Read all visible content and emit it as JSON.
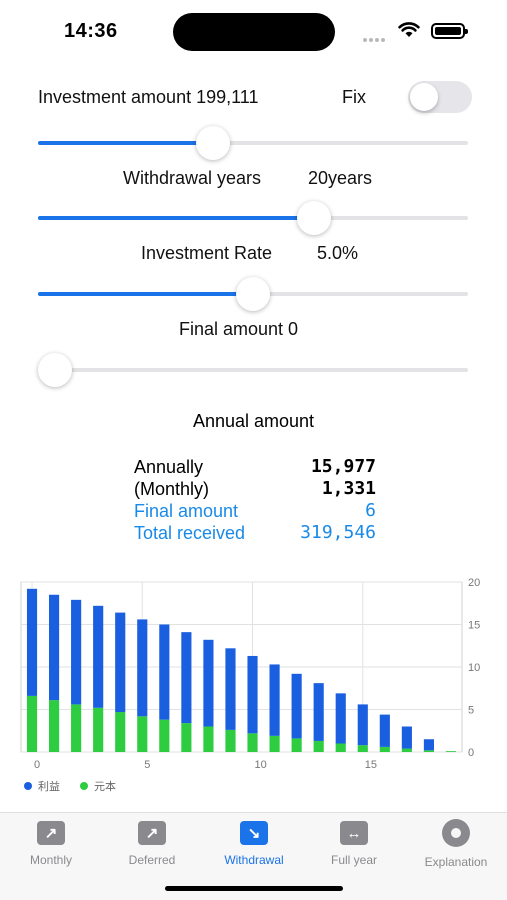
{
  "status_bar": {
    "time": "14:36"
  },
  "investment": {
    "label": "Investment amount 199,111",
    "fix_label": "Fix",
    "fix_on": false,
    "slider_fraction": 0.4
  },
  "withdrawal": {
    "label": "Withdrawal years",
    "value": "20years",
    "slider_fraction": 0.655
  },
  "rate": {
    "label": "Investment Rate",
    "value": "5.0%",
    "slider_fraction": 0.5
  },
  "final": {
    "label": "Final amount 0",
    "slider_fraction": 0.0
  },
  "annual": {
    "title": "Annual amount",
    "rows": [
      {
        "label": "Annually",
        "value": "15,977"
      },
      {
        "label": "(Monthly)",
        "value": "1,331"
      },
      {
        "label": "Final amount",
        "value": "6"
      },
      {
        "label": "Total received",
        "value": "319,546"
      }
    ]
  },
  "chart_data": {
    "type": "bar",
    "stacked": true,
    "x": [
      0,
      1,
      2,
      3,
      4,
      5,
      6,
      7,
      8,
      9,
      10,
      11,
      12,
      13,
      14,
      15,
      16,
      17,
      18,
      19
    ],
    "x_ticks": [
      "0",
      "5",
      "10",
      "15"
    ],
    "y_ticks": [
      "0",
      "5",
      "10",
      "15",
      "20"
    ],
    "ylim": [
      0,
      20
    ],
    "y_axis_side": "right",
    "grid": true,
    "legend_position": "bottom-left",
    "series": [
      {
        "name": "元本",
        "color": "#2ecc40",
        "values": [
          6.6,
          6.1,
          5.6,
          5.2,
          4.7,
          4.2,
          3.8,
          3.4,
          3.0,
          2.6,
          2.2,
          1.9,
          1.6,
          1.3,
          1.0,
          0.8,
          0.6,
          0.4,
          0.2,
          0.1
        ]
      },
      {
        "name": "利益",
        "color": "#1a5fe0",
        "values": [
          12.6,
          12.4,
          12.3,
          12.0,
          11.7,
          11.4,
          11.2,
          10.7,
          10.2,
          9.6,
          9.1,
          8.4,
          7.6,
          6.8,
          5.9,
          4.8,
          3.8,
          2.6,
          1.3,
          0
        ]
      }
    ]
  },
  "tabs": [
    {
      "label": "Monthly",
      "icon": "arrow-up-right-icon",
      "glyph": "↗",
      "active": false
    },
    {
      "label": "Deferred",
      "icon": "arrow-up-right-icon",
      "glyph": "↗",
      "active": false
    },
    {
      "label": "Withdrawal",
      "icon": "arrow-down-right-icon",
      "glyph": "↘",
      "active": true
    },
    {
      "label": "Full year",
      "icon": "arrows-horizontal-icon",
      "glyph": "↔",
      "active": false
    },
    {
      "label": "Explanation",
      "icon": "gear-icon",
      "glyph": "",
      "active": false
    }
  ],
  "colors": {
    "accent": "#1a73e8",
    "link_blue": "#1a8ae8",
    "profit": "#1a5fe0",
    "principal": "#2ecc40"
  }
}
